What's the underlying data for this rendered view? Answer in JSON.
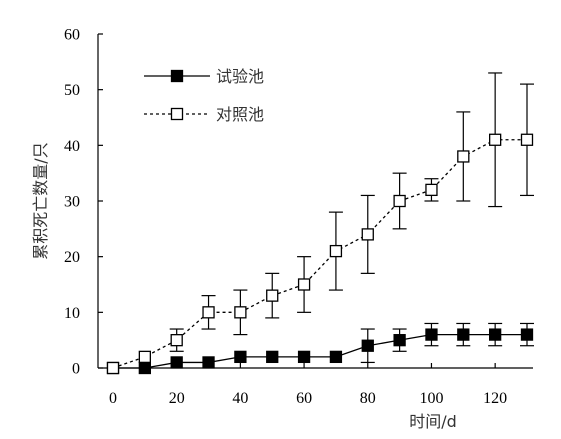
{
  "chart_data": {
    "type": "line",
    "title": "",
    "xlabel": "时间/d",
    "ylabel": "累积死亡数量/只",
    "xlim": [
      0,
      130
    ],
    "ylim": [
      0,
      60
    ],
    "x_ticks": [
      0,
      20,
      40,
      60,
      80,
      100,
      120
    ],
    "y_ticks": [
      0,
      10,
      20,
      30,
      40,
      50,
      60
    ],
    "grid": false,
    "legend_position": "top-left",
    "series": [
      {
        "name": "试验池",
        "marker": "filled-square",
        "line_style": "solid",
        "color": "#000000",
        "x": [
          0,
          10,
          20,
          30,
          40,
          50,
          60,
          70,
          80,
          90,
          100,
          110,
          120,
          130
        ],
        "y": [
          0,
          0,
          1,
          1,
          2,
          2,
          2,
          2,
          4,
          5,
          6,
          6,
          6,
          6
        ],
        "y_err": [
          0,
          0,
          0,
          0,
          0,
          0,
          0,
          0,
          3,
          2,
          2,
          2,
          2,
          2
        ]
      },
      {
        "name": "对照池",
        "marker": "open-square",
        "line_style": "dotted",
        "color": "#000000",
        "x": [
          0,
          10,
          20,
          30,
          40,
          50,
          60,
          70,
          80,
          90,
          100,
          110,
          120,
          130
        ],
        "y": [
          0,
          2,
          5,
          10,
          10,
          13,
          15,
          21,
          24,
          30,
          32,
          38,
          41,
          41
        ],
        "y_err": [
          0,
          0,
          2,
          3,
          4,
          4,
          5,
          7,
          7,
          5,
          2,
          8,
          12,
          10
        ]
      }
    ]
  }
}
